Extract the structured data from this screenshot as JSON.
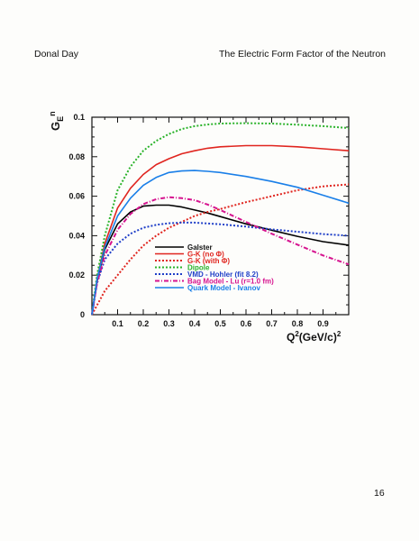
{
  "header": {
    "author": "Donal Day",
    "title": "The Electric Form Factor of the Neutron"
  },
  "page_number": "16",
  "chart_data": {
    "type": "line",
    "ylabel": "G_E^n",
    "xlabel": "Q^2(GeV/c)^2",
    "xlim": [
      0,
      1.0
    ],
    "ylim": [
      0,
      0.1
    ],
    "x_ticks": [
      "0.1",
      "0.2",
      "0.3",
      "0.4",
      "0.5",
      "0.6",
      "0.7",
      "0.8",
      "0.9"
    ],
    "y_ticks": [
      "0",
      "0.02",
      "0.04",
      "0.06",
      "0.08",
      "0.1"
    ],
    "legend_position": "bottom-center",
    "series": [
      {
        "name": "Galster",
        "color": "#000000",
        "dash": "solid",
        "x": [
          0,
          0.02,
          0.05,
          0.1,
          0.15,
          0.2,
          0.25,
          0.3,
          0.35,
          0.4,
          0.45,
          0.5,
          0.6,
          0.7,
          0.8,
          0.9,
          1.0
        ],
        "y": [
          0,
          0.017,
          0.033,
          0.046,
          0.052,
          0.055,
          0.0555,
          0.0555,
          0.0545,
          0.053,
          0.0515,
          0.0497,
          0.046,
          0.0428,
          0.0397,
          0.037,
          0.0352
        ]
      },
      {
        "name": "G-K (no Φ)",
        "color": "#e0251f",
        "dash": "solid",
        "x": [
          0,
          0.02,
          0.05,
          0.1,
          0.15,
          0.2,
          0.25,
          0.3,
          0.35,
          0.4,
          0.45,
          0.5,
          0.6,
          0.7,
          0.8,
          0.9,
          1.0
        ],
        "y": [
          0,
          0.018,
          0.036,
          0.054,
          0.064,
          0.071,
          0.076,
          0.079,
          0.0815,
          0.083,
          0.0843,
          0.085,
          0.0856,
          0.0856,
          0.085,
          0.084,
          0.083
        ]
      },
      {
        "name": "G-K (with Φ)",
        "color": "#e0251f",
        "dash": "dotted",
        "x": [
          0,
          0.05,
          0.1,
          0.15,
          0.2,
          0.25,
          0.3,
          0.35,
          0.4,
          0.45,
          0.5,
          0.6,
          0.7,
          0.8,
          0.9,
          1.0
        ],
        "y": [
          0,
          0.012,
          0.02,
          0.028,
          0.035,
          0.04,
          0.044,
          0.047,
          0.05,
          0.052,
          0.0535,
          0.057,
          0.06,
          0.063,
          0.065,
          0.066
        ]
      },
      {
        "name": "Dipole",
        "color": "#2bb32b",
        "dash": "dotted",
        "x": [
          0,
          0.02,
          0.05,
          0.1,
          0.15,
          0.2,
          0.25,
          0.3,
          0.35,
          0.4,
          0.45,
          0.5,
          0.6,
          0.7,
          0.8,
          0.9,
          1.0
        ],
        "y": [
          0,
          0.02,
          0.04,
          0.063,
          0.075,
          0.083,
          0.088,
          0.0915,
          0.094,
          0.0955,
          0.0963,
          0.0968,
          0.097,
          0.0968,
          0.0962,
          0.0955,
          0.0945
        ]
      },
      {
        "name": "VMD - Hohler (fit 8.2)",
        "color": "#1f3fc8",
        "dash": "dotted",
        "x": [
          0,
          0.02,
          0.05,
          0.1,
          0.15,
          0.2,
          0.25,
          0.3,
          0.35,
          0.4,
          0.5,
          0.6,
          0.7,
          0.8,
          0.9,
          1.0
        ],
        "y": [
          0,
          0.016,
          0.028,
          0.036,
          0.041,
          0.044,
          0.0455,
          0.0463,
          0.0466,
          0.0466,
          0.0458,
          0.0446,
          0.0432,
          0.042,
          0.0408,
          0.04
        ]
      },
      {
        "name": "Bag Model - Lu (r=1.0 fm)",
        "color": "#d6148f",
        "dash": "dashdot",
        "x": [
          0,
          0.02,
          0.05,
          0.1,
          0.15,
          0.2,
          0.25,
          0.3,
          0.35,
          0.4,
          0.45,
          0.5,
          0.6,
          0.7,
          0.8,
          0.9,
          1.0
        ],
        "y": [
          0,
          0.016,
          0.03,
          0.043,
          0.051,
          0.056,
          0.0585,
          0.0595,
          0.059,
          0.058,
          0.0558,
          0.053,
          0.047,
          0.041,
          0.0355,
          0.03,
          0.0255
        ]
      },
      {
        "name": "Quark Model - Ivanov",
        "color": "#1a7fe8",
        "dash": "solid",
        "x": [
          0,
          0.02,
          0.05,
          0.1,
          0.15,
          0.2,
          0.25,
          0.3,
          0.35,
          0.4,
          0.45,
          0.5,
          0.6,
          0.7,
          0.8,
          0.9,
          1.0
        ],
        "y": [
          0,
          0.018,
          0.034,
          0.05,
          0.059,
          0.0655,
          0.0695,
          0.072,
          0.0728,
          0.073,
          0.0726,
          0.072,
          0.07,
          0.0675,
          0.0645,
          0.0605,
          0.0565
        ]
      }
    ]
  }
}
